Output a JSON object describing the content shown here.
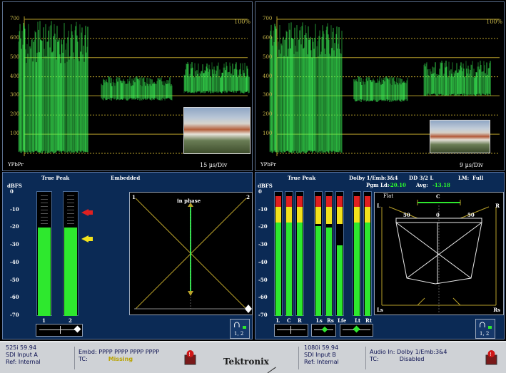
{
  "waveform_left": {
    "scale_labels": [
      "700",
      "600",
      "500",
      "400",
      "300",
      "200",
      "100"
    ],
    "percent_label": "100%",
    "format": "YPbPr",
    "timebase": "15 µs/Div"
  },
  "waveform_right": {
    "scale_labels": [
      "700",
      "600",
      "500",
      "400",
      "300",
      "200",
      "100"
    ],
    "percent_label": "100%",
    "format": "YPbPr",
    "timebase": "9 µs/Div"
  },
  "audio_left": {
    "title": "True Peak",
    "source": "Embedded",
    "units": "dBFS",
    "scale": [
      "0",
      "-10",
      "-20",
      "-30",
      "-40",
      "-50",
      "-60",
      "-70"
    ],
    "channels": [
      "1",
      "2"
    ],
    "levels_dbfs": [
      -20,
      -20
    ],
    "gonio_left": "1",
    "gonio_right": "2",
    "phase_label": "in phase",
    "headphone_label": "1, 2"
  },
  "audio_right": {
    "title": "True Peak",
    "source": "Dolby 1/Emb:3&4",
    "dolby_mode": "DD 3/2 L",
    "lm_label": "LM:",
    "lm_value": "Full",
    "pgm_label": "Pgm Ld:",
    "pgm_value": "-20.10",
    "avg_label": "Avg:",
    "avg_value": "-13.18",
    "units": "dBFS",
    "scale": [
      "0",
      "-10",
      "-20",
      "-30",
      "-40",
      "-50",
      "-60",
      "-70"
    ],
    "channels": [
      "L",
      "C",
      "R",
      "Ls",
      "Rs",
      "Lfe",
      "Lt",
      "Rt"
    ],
    "levels_dbfs": [
      -17,
      -17,
      -17,
      -19,
      -20,
      -30,
      -17,
      -17
    ],
    "surround_flat": "Flat",
    "surround_c": "C",
    "surround_l": "L",
    "surround_r": "R",
    "surround_ls": "Ls",
    "surround_rs": "Rs",
    "surround_50a": "50",
    "surround_0": "0",
    "surround_50b": "50",
    "headphone_label": "1, 2"
  },
  "status": {
    "left_format": "525i 59.94",
    "left_input": "SDI Input A",
    "left_ref": "Ref: Internal",
    "embd_label": "Embd: PPPP PPPP PPPP PPPP",
    "tc_label_left": "TC:",
    "tc_value_left": "Missing",
    "brand": "Tektronix",
    "right_format": "1080i 59.94",
    "right_input": "SDI Input B",
    "right_ref": "Ref: Internal",
    "audio_in": "Audio In: Dolby 1/Emb:3&4",
    "tc_label_right": "TC:",
    "tc_value_right": "Disabled"
  },
  "colors": {
    "trace_green": "#3dff5a",
    "meter_green": "#2ee82e",
    "meter_yellow": "#f2e21c",
    "meter_red": "#e02020",
    "panel_blue": "#0b2a55",
    "graticule_yellow": "#b9a12a"
  }
}
